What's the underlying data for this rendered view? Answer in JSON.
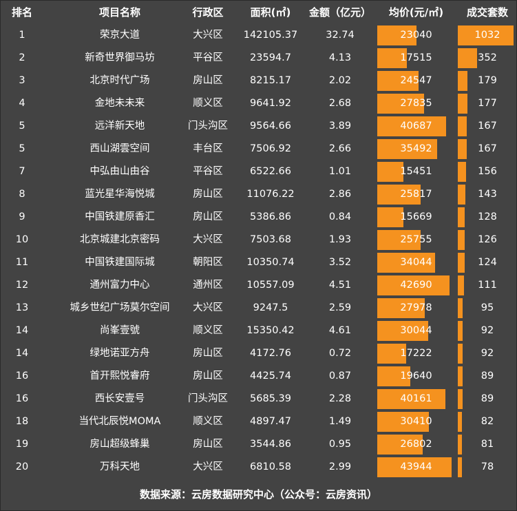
{
  "headers": [
    "排名",
    "项目名称",
    "行政区",
    "面积(㎡)",
    "金额（亿元）",
    "均价(元/㎡)",
    "成交套数"
  ],
  "footer": "数据来源：云房数据研究中心（公众号：云房资讯）",
  "colors": {
    "background": "#434343",
    "bar": "#f5921f",
    "text": "#ffffff"
  },
  "chart_data": {
    "type": "table",
    "columns": [
      "排名",
      "项目名称",
      "行政区",
      "面积(㎡)",
      "金额（亿元）",
      "均价(元/㎡)",
      "成交套数"
    ],
    "bar_columns": [
      "均价(元/㎡)",
      "成交套数"
    ],
    "rows": [
      [
        "1",
        "荣京大道",
        "大兴区",
        "142105.37",
        "32.74",
        23040,
        1032
      ],
      [
        "2",
        "新奇世界御马坊",
        "平谷区",
        "23594.7",
        "4.13",
        17515,
        352
      ],
      [
        "3",
        "北京时代广场",
        "房山区",
        "8215.17",
        "2.02",
        24547,
        179
      ],
      [
        "4",
        "金地未未来",
        "顺义区",
        "9641.92",
        "2.68",
        27835,
        177
      ],
      [
        "5",
        "远洋新天地",
        "门头沟区",
        "9564.66",
        "3.89",
        40687,
        167
      ],
      [
        "5",
        "西山湖雲空间",
        "丰台区",
        "7506.92",
        "2.66",
        35492,
        167
      ],
      [
        "7",
        "中弘由山由谷",
        "平谷区",
        "6522.66",
        "1.01",
        15451,
        156
      ],
      [
        "8",
        "蓝光星华海悦城",
        "房山区",
        "11076.22",
        "2.86",
        25817,
        143
      ],
      [
        "9",
        "中国铁建原香汇",
        "房山区",
        "5386.86",
        "0.84",
        15669,
        128
      ],
      [
        "10",
        "北京城建北京密码",
        "大兴区",
        "7503.68",
        "1.93",
        25755,
        126
      ],
      [
        "11",
        "中国铁建国际城",
        "朝阳区",
        "10350.74",
        "3.52",
        34044,
        124
      ],
      [
        "12",
        "通州富力中心",
        "通州区",
        "10557.09",
        "4.51",
        42690,
        111
      ],
      [
        "13",
        "城乡世纪广场莫尔空间",
        "大兴区",
        "9247.5",
        "2.59",
        27978,
        95
      ],
      [
        "14",
        "尚峯壹號",
        "顺义区",
        "15350.42",
        "4.61",
        30044,
        92
      ],
      [
        "14",
        "绿地诺亚方舟",
        "房山区",
        "4172.76",
        "0.72",
        17222,
        92
      ],
      [
        "16",
        "首开熙悦睿府",
        "房山区",
        "4425.74",
        "0.87",
        19640,
        89
      ],
      [
        "16",
        "西长安壹号",
        "门头沟区",
        "5685.39",
        "2.28",
        40161,
        89
      ],
      [
        "18",
        "当代北辰悦MOMA",
        "顺义区",
        "4897.47",
        "1.49",
        30410,
        82
      ],
      [
        "19",
        "房山超级蜂巢",
        "房山区",
        "3544.86",
        "0.95",
        26802,
        81
      ],
      [
        "20",
        "万科天地",
        "大兴区",
        "6810.58",
        "2.99",
        43944,
        78
      ]
    ]
  }
}
